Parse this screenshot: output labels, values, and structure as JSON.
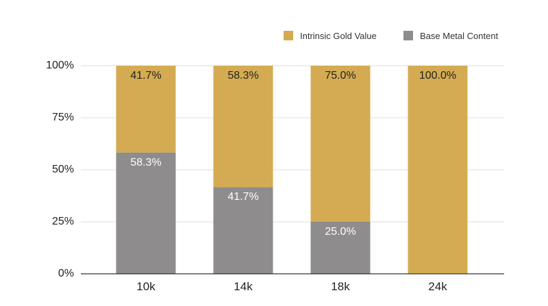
{
  "chart_data": {
    "type": "bar",
    "stacked": true,
    "categories": [
      "10k",
      "14k",
      "18k",
      "24k"
    ],
    "series": [
      {
        "name": "Base Metal Content",
        "values": [
          58.3,
          41.7,
          25.0,
          0
        ],
        "labels": [
          "58.3%",
          "41.7%",
          "25.0%",
          ""
        ],
        "color": "#8e8c8d",
        "label_color": "#ffffff"
      },
      {
        "name": "Intrinsic Gold Value",
        "values": [
          41.7,
          58.3,
          75.0,
          100.0
        ],
        "labels": [
          "41.7%",
          "58.3%",
          "75.0%",
          "100.0%"
        ],
        "color": "#d4ab52",
        "label_color": "#222222"
      }
    ],
    "legend_order": [
      "Intrinsic Gold Value",
      "Base Metal Content"
    ],
    "legend_position": "top-right",
    "ylim": [
      0,
      100
    ],
    "yticks": [
      0,
      25,
      50,
      75,
      100
    ],
    "ytick_labels": [
      "0%",
      "25%",
      "50%",
      "75%",
      "100%"
    ],
    "grid": true,
    "grid_color": "#dddddd",
    "axis_color": "#333333",
    "title": "",
    "xlabel": "",
    "ylabel": ""
  }
}
